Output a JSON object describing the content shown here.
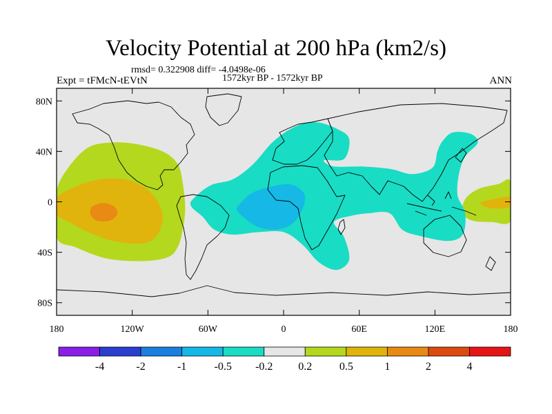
{
  "header": {
    "title": "Velocity Potential at 200 hPa (km2/s)",
    "stats": "rmsd= 0.322908 diff= -4.0498e-06",
    "period": "1572kyr BP - 1572kyr BP",
    "experiment": "Expt = tFMcN-tEVtN",
    "season": "ANN"
  },
  "map": {
    "projection": "cylindrical-equidistant",
    "lon_range": [
      -180,
      180
    ],
    "lat_range": [
      -90,
      90
    ],
    "background_color": "#e6e6e6",
    "lat_tick_labels": [
      {
        "lat": 80,
        "label": "80N"
      },
      {
        "lat": 40,
        "label": "40N"
      },
      {
        "lat": 0,
        "label": "0"
      },
      {
        "lat": -40,
        "label": "40S"
      },
      {
        "lat": -80,
        "label": "80S"
      }
    ],
    "lon_tick_labels": [
      {
        "lon": -180,
        "label": "180"
      },
      {
        "lon": -120,
        "label": "120W"
      },
      {
        "lon": -60,
        "label": "60W"
      },
      {
        "lon": 0,
        "label": "0"
      },
      {
        "lon": 60,
        "label": "60E"
      },
      {
        "lon": 120,
        "label": "120E"
      },
      {
        "lon": 180,
        "label": "180"
      }
    ]
  },
  "colorbar": {
    "colors": [
      "#8a1ee6",
      "#2a3ecf",
      "#1a7fe0",
      "#16b8e6",
      "#19dcc4",
      "#e6e6e6",
      "#b4d81e",
      "#e0b40c",
      "#e88a14",
      "#dc4a10",
      "#e61414"
    ],
    "labels": [
      "-4",
      "-2",
      "-1",
      "-0.5",
      "-0.2",
      "0.2",
      "0.5",
      "1",
      "2",
      "4"
    ]
  },
  "contour_regions": [
    {
      "name": "pacific-positive-outer",
      "color": "#b4d81e",
      "points": [
        [
          -180,
          8
        ],
        [
          -170,
          28
        ],
        [
          -155,
          43
        ],
        [
          -138,
          47
        ],
        [
          -118,
          46
        ],
        [
          -96,
          40
        ],
        [
          -84,
          30
        ],
        [
          -80,
          15
        ],
        [
          -78,
          -5
        ],
        [
          -80,
          -22
        ],
        [
          -84,
          -36
        ],
        [
          -92,
          -44
        ],
        [
          -112,
          -47
        ],
        [
          -140,
          -45
        ],
        [
          -165,
          -36
        ],
        [
          -180,
          -28
        ]
      ]
    },
    {
      "name": "pacific-positive-mid",
      "color": "#e0b40c",
      "points": [
        [
          -180,
          3
        ],
        [
          -165,
          12
        ],
        [
          -145,
          18
        ],
        [
          -122,
          17
        ],
        [
          -105,
          7
        ],
        [
          -96,
          -10
        ],
        [
          -100,
          -26
        ],
        [
          -112,
          -33
        ],
        [
          -135,
          -31
        ],
        [
          -155,
          -24
        ],
        [
          -170,
          -16
        ],
        [
          -180,
          -10
        ]
      ]
    },
    {
      "name": "pacific-positive-core",
      "color": "#e88a14",
      "points": [
        [
          -152,
          -4
        ],
        [
          -143,
          -1
        ],
        [
          -134,
          -4
        ],
        [
          -132,
          -10
        ],
        [
          -138,
          -15
        ],
        [
          -148,
          -15
        ],
        [
          -153,
          -10
        ]
      ]
    },
    {
      "name": "west-pacific-positive-outer",
      "color": "#b4d81e",
      "points": [
        [
          180,
          16
        ],
        [
          170,
          14
        ],
        [
          154,
          10
        ],
        [
          144,
          2
        ],
        [
          142,
          -9
        ],
        [
          150,
          -15
        ],
        [
          165,
          -16
        ],
        [
          180,
          -15
        ]
      ]
    },
    {
      "name": "west-pacific-positive-core",
      "color": "#e0b40c",
      "points": [
        [
          180,
          4
        ],
        [
          166,
          2
        ],
        [
          156,
          -1
        ],
        [
          164,
          -5
        ],
        [
          180,
          -4
        ]
      ]
    },
    {
      "name": "atlantic-negative-outer",
      "color": "#19dcc4",
      "points": [
        [
          -72,
          2
        ],
        [
          -58,
          13
        ],
        [
          -40,
          18
        ],
        [
          -24,
          30
        ],
        [
          -8,
          48
        ],
        [
          10,
          60
        ],
        [
          26,
          63
        ],
        [
          42,
          58
        ],
        [
          52,
          50
        ],
        [
          48,
          34
        ],
        [
          32,
          33
        ],
        [
          40,
          28
        ],
        [
          62,
          28
        ],
        [
          85,
          26
        ],
        [
          102,
          22
        ],
        [
          118,
          27
        ],
        [
          122,
          40
        ],
        [
          126,
          48
        ],
        [
          134,
          55
        ],
        [
          148,
          54
        ],
        [
          154,
          47
        ],
        [
          144,
          36
        ],
        [
          139,
          22
        ],
        [
          138,
          5
        ],
        [
          144,
          -9
        ],
        [
          142,
          -26
        ],
        [
          130,
          -31
        ],
        [
          108,
          -27
        ],
        [
          94,
          -22
        ],
        [
          84,
          -9
        ],
        [
          68,
          -9
        ],
        [
          54,
          -11
        ],
        [
          40,
          -16
        ],
        [
          48,
          -28
        ],
        [
          52,
          -46
        ],
        [
          42,
          -54
        ],
        [
          28,
          -48
        ],
        [
          15,
          -34
        ],
        [
          0,
          -24
        ],
        [
          -20,
          -24
        ],
        [
          -40,
          -26
        ],
        [
          -55,
          -22
        ],
        [
          -64,
          -12
        ],
        [
          -73,
          -4
        ]
      ]
    },
    {
      "name": "atlantic-negative-core",
      "color": "#16b8e6",
      "points": [
        [
          -35,
          -2
        ],
        [
          -25,
          7
        ],
        [
          -10,
          12
        ],
        [
          3,
          14
        ],
        [
          12,
          11
        ],
        [
          17,
          4
        ],
        [
          14,
          -8
        ],
        [
          6,
          -18
        ],
        [
          -6,
          -22
        ],
        [
          -20,
          -20
        ],
        [
          -32,
          -12
        ],
        [
          -37,
          -6
        ]
      ]
    }
  ]
}
